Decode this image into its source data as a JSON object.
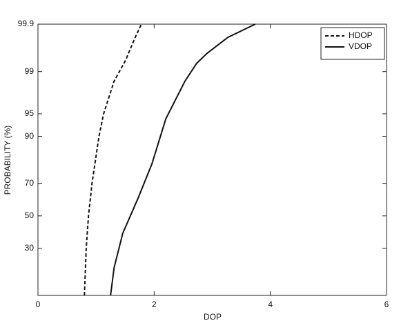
{
  "chart_data": {
    "type": "line",
    "xlabel": "DOP",
    "ylabel": "PROBABILITY (%)",
    "xlim": [
      0,
      6
    ],
    "xticks": [
      0,
      2,
      4,
      6
    ],
    "ylim": [
      10,
      99.9
    ],
    "yticks": [
      30,
      50,
      70,
      90,
      95,
      99,
      99.9
    ],
    "yscale": "probit",
    "grid": false,
    "legend": "upper right",
    "series": [
      {
        "name": "HDOP",
        "color": "#111111",
        "dash": "dashed",
        "x": [
          0.8,
          0.83,
          0.87,
          0.93,
          1.05,
          1.13,
          1.31,
          1.51,
          1.66,
          1.78
        ],
        "values": [
          10,
          30,
          50,
          70,
          90,
          95,
          98.5,
          99.4,
          99.78,
          99.9
        ]
      },
      {
        "name": "VDOP",
        "color": "#111111",
        "dash": "solid",
        "x": [
          1.25,
          1.31,
          1.46,
          1.72,
          1.96,
          2.2,
          2.53,
          2.73,
          2.91,
          3.27,
          3.74
        ],
        "values": [
          10,
          20.2,
          39,
          61,
          79.8,
          94.1,
          98.5,
          99.3,
          99.56,
          99.8,
          99.9
        ]
      }
    ]
  }
}
